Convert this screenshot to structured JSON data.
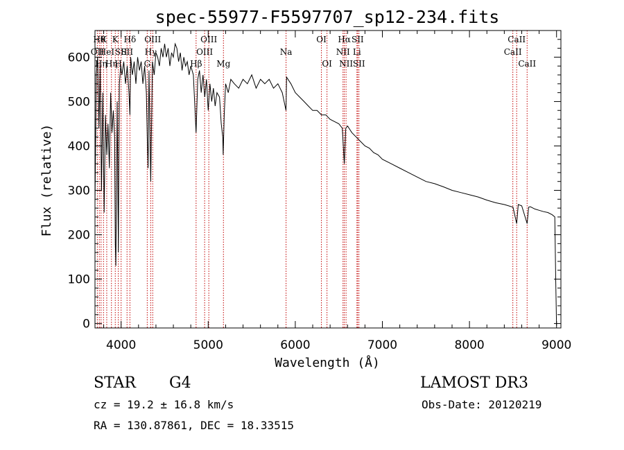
{
  "chart_data": {
    "type": "line",
    "title": "spec-55977-F5597707_sp12-234.fits",
    "xlabel": "Wavelength (Å)",
    "ylabel": "Flux (relative)",
    "xlim": [
      3700,
      9050
    ],
    "ylim": [
      -10,
      660
    ],
    "xticks": [
      4000,
      5000,
      6000,
      7000,
      8000,
      9000
    ],
    "yticks": [
      0,
      100,
      200,
      300,
      400,
      500,
      600
    ],
    "series": [
      {
        "name": "flux",
        "x": [
          3700,
          3715,
          3730,
          3745,
          3760,
          3775,
          3790,
          3805,
          3820,
          3835,
          3850,
          3865,
          3880,
          3895,
          3910,
          3925,
          3933,
          3940,
          3955,
          3968,
          3980,
          3995,
          4010,
          4030,
          4050,
          4070,
          4090,
          4101,
          4110,
          4130,
          4150,
          4170,
          4190,
          4210,
          4230,
          4250,
          4270,
          4290,
          4300,
          4310,
          4320,
          4340,
          4360,
          4380,
          4400,
          4420,
          4440,
          4460,
          4480,
          4500,
          4520,
          4540,
          4560,
          4580,
          4600,
          4620,
          4640,
          4660,
          4680,
          4700,
          4720,
          4740,
          4760,
          4780,
          4800,
          4830,
          4861,
          4880,
          4900,
          4920,
          4940,
          4960,
          4980,
          5000,
          5020,
          5040,
          5060,
          5080,
          5100,
          5130,
          5150,
          5167,
          5172,
          5184,
          5200,
          5230,
          5260,
          5300,
          5350,
          5400,
          5450,
          5500,
          5550,
          5600,
          5650,
          5700,
          5750,
          5800,
          5850,
          5893,
          5900,
          5950,
          6000,
          6050,
          6100,
          6150,
          6200,
          6250,
          6300,
          6350,
          6400,
          6450,
          6500,
          6540,
          6563,
          6580,
          6600,
          6650,
          6700,
          6750,
          6800,
          6850,
          6900,
          6950,
          7000,
          7100,
          7200,
          7300,
          7400,
          7500,
          7600,
          7700,
          7800,
          7900,
          8000,
          8100,
          8200,
          8300,
          8400,
          8500,
          8542,
          8560,
          8600,
          8662,
          8680,
          8700,
          8750,
          8800,
          8850,
          8900,
          8950,
          8980,
          8990,
          9000
        ],
        "y": [
          270,
          560,
          600,
          440,
          580,
          300,
          520,
          250,
          470,
          380,
          450,
          350,
          520,
          430,
          480,
          420,
          180,
          130,
          500,
          160,
          540,
          580,
          560,
          590,
          540,
          580,
          520,
          470,
          600,
          560,
          590,
          540,
          600,
          570,
          590,
          540,
          580,
          520,
          420,
          350,
          570,
          320,
          590,
          560,
          610,
          600,
          580,
          620,
          600,
          630,
          600,
          620,
          580,
          610,
          600,
          630,
          620,
          590,
          610,
          570,
          600,
          580,
          590,
          560,
          580,
          560,
          430,
          550,
          570,
          520,
          560,
          510,
          550,
          480,
          540,
          500,
          530,
          490,
          520,
          510,
          450,
          420,
          380,
          470,
          540,
          520,
          550,
          540,
          530,
          550,
          540,
          560,
          530,
          550,
          540,
          550,
          530,
          540,
          520,
          480,
          555,
          540,
          520,
          510,
          500,
          490,
          480,
          480,
          470,
          470,
          460,
          455,
          450,
          440,
          360,
          440,
          445,
          430,
          420,
          410,
          400,
          395,
          385,
          380,
          370,
          360,
          350,
          340,
          330,
          320,
          315,
          308,
          300,
          295,
          290,
          285,
          278,
          272,
          268,
          262,
          225,
          268,
          265,
          225,
          262,
          263,
          258,
          255,
          252,
          250,
          245,
          240,
          100,
          -5
        ]
      }
    ],
    "lines": [
      {
        "w": 3727,
        "label": "OII",
        "row": 1
      },
      {
        "w": 3750,
        "label": "Hθ",
        "row": 0
      },
      {
        "w": 3770,
        "label": "Hη",
        "row": 2
      },
      {
        "w": 3798,
        "label": "K",
        "row": 0
      },
      {
        "w": 3835,
        "label": "HeI",
        "row": 1
      },
      {
        "w": 3889,
        "label": "Hη",
        "row": 2
      },
      {
        "w": 3933,
        "label": "K",
        "row": 0
      },
      {
        "w": 3968,
        "label": "H",
        "row": 2
      },
      {
        "w": 4000,
        "label": "SII",
        "row": 1
      },
      {
        "w": 4068,
        "label": "SII",
        "row": 1
      },
      {
        "w": 4101,
        "label": "Hδ",
        "row": 0
      },
      {
        "w": 4300,
        "label": "G",
        "row": 2
      },
      {
        "w": 4340,
        "label": "Hγ",
        "row": 1
      },
      {
        "w": 4363,
        "label": "OIII",
        "row": 0
      },
      {
        "w": 4861,
        "label": "Hβ",
        "row": 2
      },
      {
        "w": 4959,
        "label": "OIII",
        "row": 1
      },
      {
        "w": 5007,
        "label": "OIII",
        "row": 0
      },
      {
        "w": 5175,
        "label": "Mg",
        "row": 2
      },
      {
        "w": 5894,
        "label": "Na",
        "row": 1
      },
      {
        "w": 6300,
        "label": "OI",
        "row": 0
      },
      {
        "w": 6364,
        "label": "OI",
        "row": 2
      },
      {
        "w": 6548,
        "label": "NII",
        "row": 1
      },
      {
        "w": 6563,
        "label": "Hα",
        "row": 0
      },
      {
        "w": 6583,
        "label": "NII",
        "row": 2
      },
      {
        "w": 6708,
        "label": "Li",
        "row": 1
      },
      {
        "w": 6716,
        "label": "SII",
        "row": 0
      },
      {
        "w": 6731,
        "label": "SII",
        "row": 2
      },
      {
        "w": 8498,
        "label": "CaII",
        "row": 1
      },
      {
        "w": 8542,
        "label": "CaII",
        "row": 0
      },
      {
        "w": 8662,
        "label": "CaII",
        "row": 2
      }
    ]
  },
  "info": {
    "class": "STAR",
    "subclass": "G4",
    "survey": "LAMOST DR3",
    "cz": "cz = 19.2 ± 16.8 km/s",
    "obs_date": "Obs-Date: 20120219",
    "radec": "RA = 130.87861, DEC =  18.33515"
  }
}
